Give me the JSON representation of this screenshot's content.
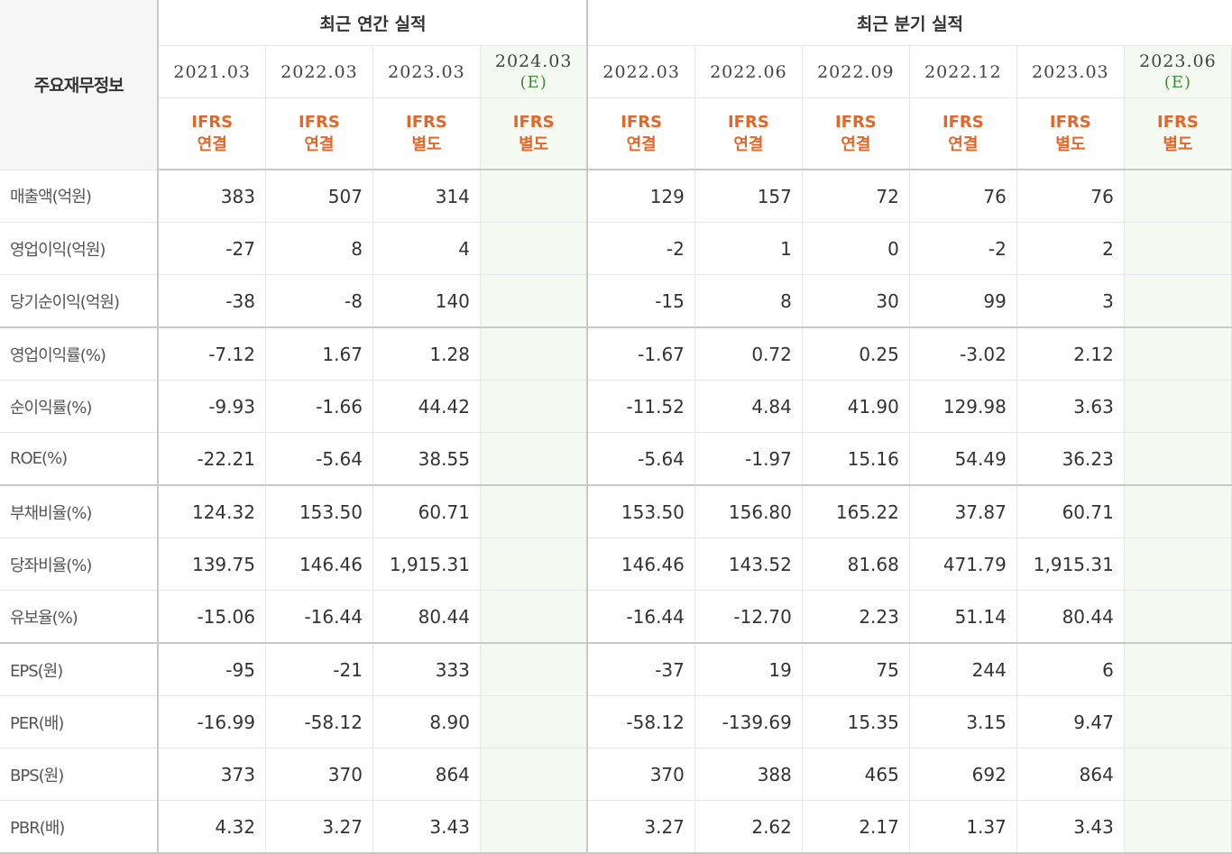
{
  "table": {
    "corner_label": "주요재무정보",
    "groups": {
      "annual": "최근 연간 실적",
      "quarterly": "최근 분기 실적"
    },
    "annual_columns": [
      {
        "date": "2021.03",
        "estimate": "",
        "ifrs1": "IFRS",
        "ifrs2": "연결"
      },
      {
        "date": "2022.03",
        "estimate": "",
        "ifrs1": "IFRS",
        "ifrs2": "연결"
      },
      {
        "date": "2023.03",
        "estimate": "",
        "ifrs1": "IFRS",
        "ifrs2": "별도"
      },
      {
        "date": "2024.03",
        "estimate": "(E)",
        "ifrs1": "IFRS",
        "ifrs2": "별도"
      }
    ],
    "quarter_columns": [
      {
        "date": "2022.03",
        "estimate": "",
        "ifrs1": "IFRS",
        "ifrs2": "연결"
      },
      {
        "date": "2022.06",
        "estimate": "",
        "ifrs1": "IFRS",
        "ifrs2": "연결"
      },
      {
        "date": "2022.09",
        "estimate": "",
        "ifrs1": "IFRS",
        "ifrs2": "연결"
      },
      {
        "date": "2022.12",
        "estimate": "",
        "ifrs1": "IFRS",
        "ifrs2": "연결"
      },
      {
        "date": "2023.03",
        "estimate": "",
        "ifrs1": "IFRS",
        "ifrs2": "별도"
      },
      {
        "date": "2023.06",
        "estimate": "(E)",
        "ifrs1": "IFRS",
        "ifrs2": "별도"
      }
    ],
    "rows": [
      {
        "label": "매출액(억원)",
        "annual": [
          "383",
          "507",
          "314",
          ""
        ],
        "quarter": [
          "129",
          "157",
          "72",
          "76",
          "76",
          ""
        ]
      },
      {
        "label": "영업이익(억원)",
        "annual": [
          "-27",
          "8",
          "4",
          ""
        ],
        "quarter": [
          "-2",
          "1",
          "0",
          "-2",
          "2",
          ""
        ]
      },
      {
        "label": "당기순이익(억원)",
        "annual": [
          "-38",
          "-8",
          "140",
          ""
        ],
        "quarter": [
          "-15",
          "8",
          "30",
          "99",
          "3",
          ""
        ]
      },
      {
        "label": "영업이익률(%)",
        "annual": [
          "-7.12",
          "1.67",
          "1.28",
          ""
        ],
        "quarter": [
          "-1.67",
          "0.72",
          "0.25",
          "-3.02",
          "2.12",
          ""
        ]
      },
      {
        "label": "순이익률(%)",
        "annual": [
          "-9.93",
          "-1.66",
          "44.42",
          ""
        ],
        "quarter": [
          "-11.52",
          "4.84",
          "41.90",
          "129.98",
          "3.63",
          ""
        ]
      },
      {
        "label": "ROE(%)",
        "annual": [
          "-22.21",
          "-5.64",
          "38.55",
          ""
        ],
        "quarter": [
          "-5.64",
          "-1.97",
          "15.16",
          "54.49",
          "36.23",
          ""
        ]
      },
      {
        "label": "부채비율(%)",
        "annual": [
          "124.32",
          "153.50",
          "60.71",
          ""
        ],
        "quarter": [
          "153.50",
          "156.80",
          "165.22",
          "37.87",
          "60.71",
          ""
        ]
      },
      {
        "label": "당좌비율(%)",
        "annual": [
          "139.75",
          "146.46",
          "1,915.31",
          ""
        ],
        "quarter": [
          "146.46",
          "143.52",
          "81.68",
          "471.79",
          "1,915.31",
          ""
        ]
      },
      {
        "label": "유보율(%)",
        "annual": [
          "-15.06",
          "-16.44",
          "80.44",
          ""
        ],
        "quarter": [
          "-16.44",
          "-12.70",
          "2.23",
          "51.14",
          "80.44",
          ""
        ]
      },
      {
        "label": "EPS(원)",
        "annual": [
          "-95",
          "-21",
          "333",
          ""
        ],
        "quarter": [
          "-37",
          "19",
          "75",
          "244",
          "6",
          ""
        ]
      },
      {
        "label": "PER(배)",
        "annual": [
          "-16.99",
          "-58.12",
          "8.90",
          ""
        ],
        "quarter": [
          "-58.12",
          "-139.69",
          "15.35",
          "3.15",
          "9.47",
          ""
        ]
      },
      {
        "label": "BPS(원)",
        "annual": [
          "373",
          "370",
          "864",
          ""
        ],
        "quarter": [
          "370",
          "388",
          "465",
          "692",
          "864",
          ""
        ]
      },
      {
        "label": "PBR(배)",
        "annual": [
          "4.32",
          "3.27",
          "3.43",
          ""
        ],
        "quarter": [
          "3.27",
          "2.62",
          "2.17",
          "1.37",
          "3.43",
          ""
        ]
      }
    ]
  },
  "colors": {
    "negative": "#d22a1a",
    "ifrs": "#e3672a",
    "estimate_bg": "#f4f9f1",
    "estimate_text": "#3f8a3f"
  }
}
